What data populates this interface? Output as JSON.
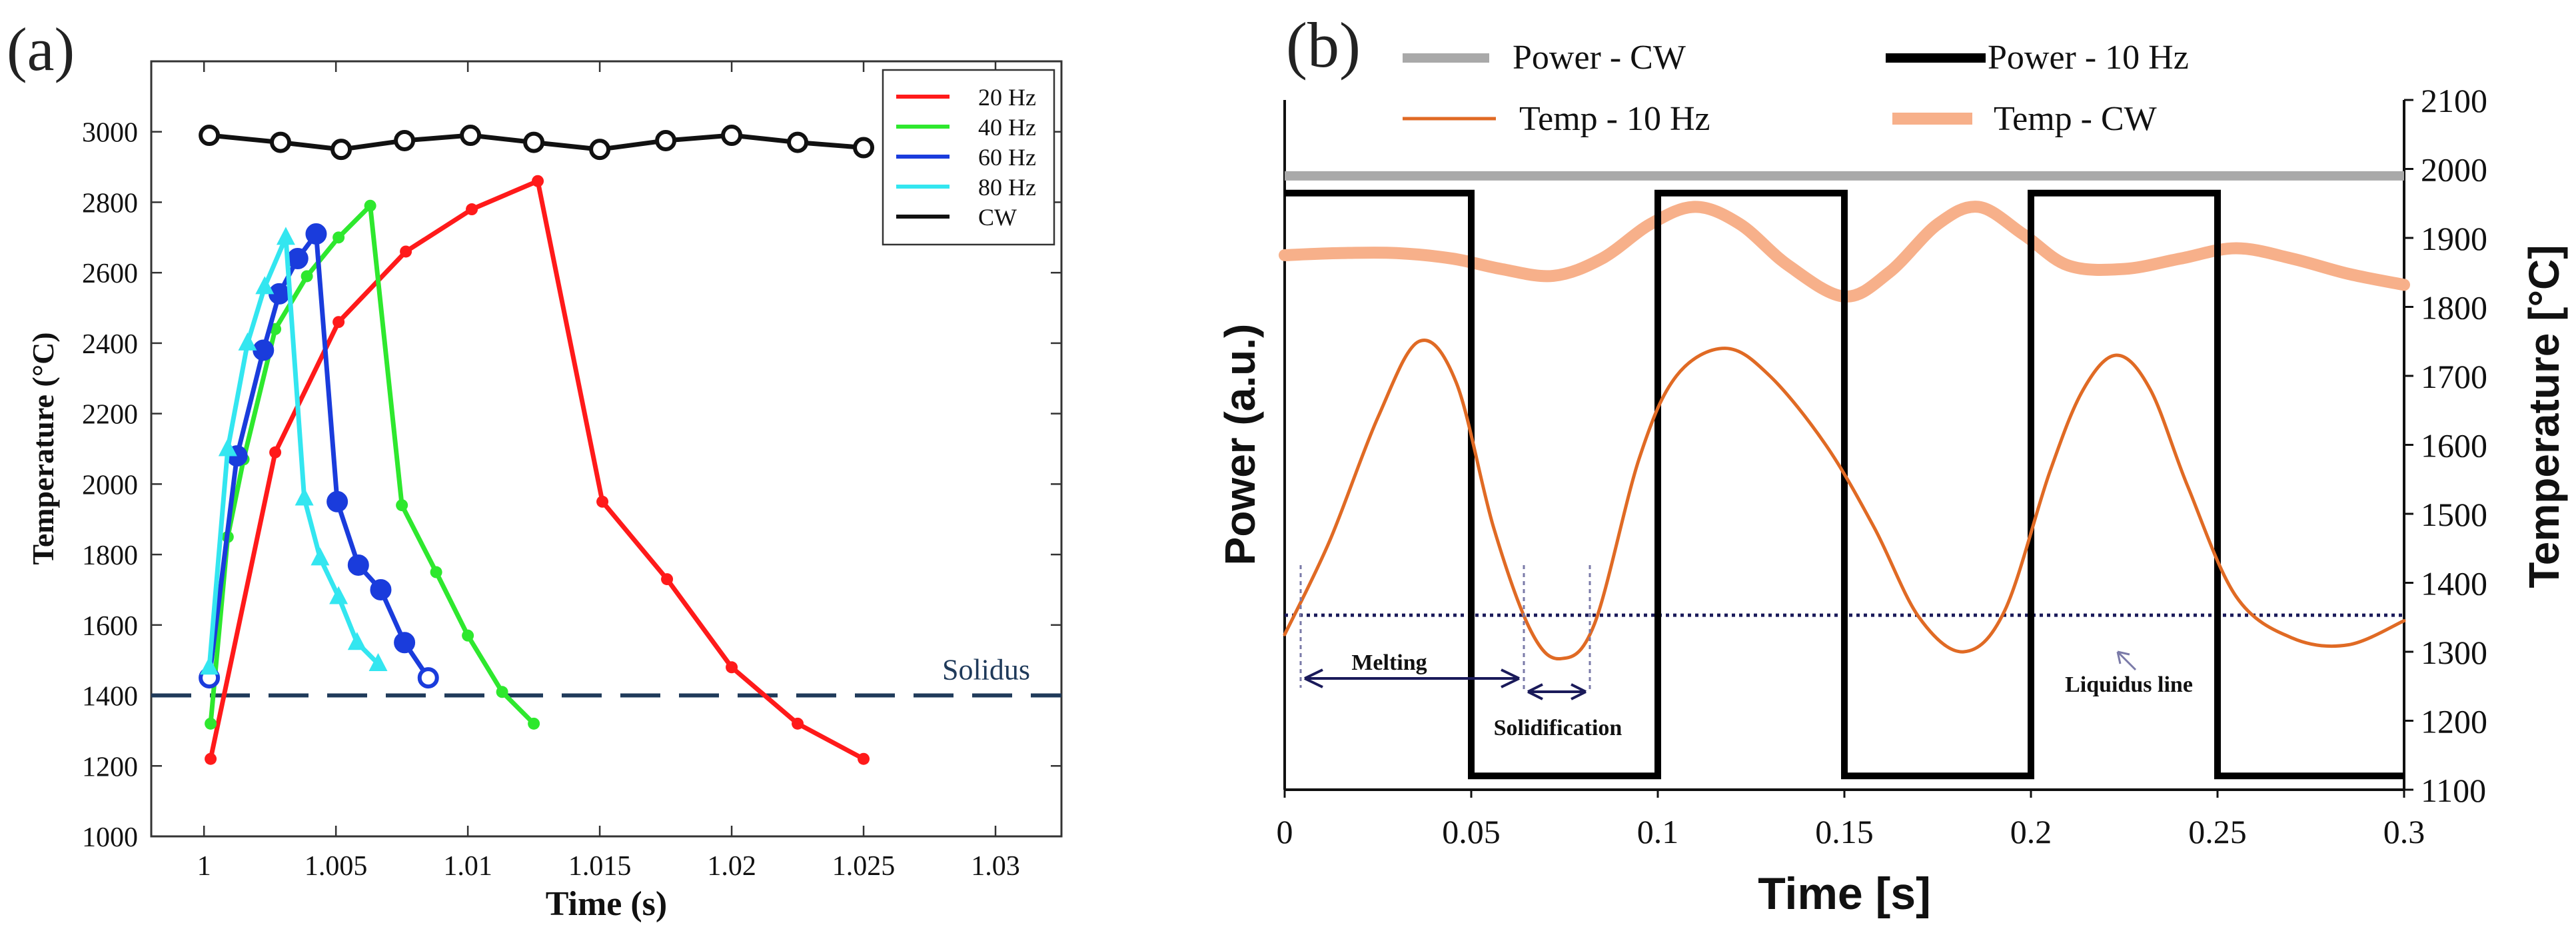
{
  "chart_data": [
    {
      "panel_label": "(a)",
      "type": "line",
      "title": "",
      "xlabel": "Time (s)",
      "ylabel": "Temperature (°C)",
      "xlim": [
        0.998,
        1.0325
      ],
      "ylim": [
        1000,
        3200
      ],
      "xticks": [
        1,
        1.005,
        1.01,
        1.015,
        1.02,
        1.025,
        1.03
      ],
      "xtick_labels": [
        "1",
        "1.005",
        "1.01",
        "1.015",
        "1.02",
        "1.025",
        "1.03"
      ],
      "yticks": [
        1000,
        1200,
        1400,
        1600,
        1800,
        2000,
        2200,
        2400,
        2600,
        2800,
        3000
      ],
      "ytick_labels": [
        "1000",
        "1200",
        "1400",
        "1600",
        "1800",
        "2000",
        "2200",
        "2400",
        "2600",
        "2800",
        "3000"
      ],
      "legend_position": "top-right",
      "solidus": {
        "value": 1400,
        "label": "Solidus",
        "color": "#1f3a5a"
      },
      "series": [
        {
          "name": "20 Hz",
          "color": "#ff1a1a",
          "marker": "dot",
          "x": [
            1.00025,
            1.0027,
            1.0051,
            1.00765,
            1.01015,
            1.01265,
            1.0151,
            1.01755,
            1.02,
            1.0225,
            1.025
          ],
          "y": [
            1220,
            2090,
            2460,
            2660,
            2780,
            2860,
            1950,
            1730,
            1480,
            1320,
            1220
          ]
        },
        {
          "name": "40 Hz",
          "color": "#2ee82e",
          "marker": "dot",
          "x": [
            1.00025,
            1.0009,
            1.0015,
            1.0027,
            1.0039,
            1.0051,
            1.0063,
            1.0075,
            1.0088,
            1.01,
            1.0113,
            1.0125
          ],
          "y": [
            1320,
            1850,
            2070,
            2440,
            2590,
            2700,
            2790,
            1940,
            1750,
            1570,
            1410,
            1320
          ]
        },
        {
          "name": "60 Hz",
          "color": "#1a3cdc",
          "marker": "circle",
          "x": [
            1.0002,
            1.00125,
            1.00225,
            1.00285,
            1.00355,
            1.00425,
            1.00505,
            1.00585,
            1.0067,
            1.0076,
            1.0085
          ],
          "y": [
            1450,
            2080,
            2380,
            2540,
            2640,
            2710,
            1950,
            1770,
            1700,
            1550,
            1450
          ]
        },
        {
          "name": "80 Hz",
          "color": "#33e6f0",
          "marker": "triangle",
          "x": [
            1.0002,
            1.0009,
            1.00165,
            1.0023,
            1.0031,
            1.0038,
            1.0044,
            1.0051,
            1.0058,
            1.0066
          ],
          "y": [
            1480,
            2100,
            2400,
            2560,
            2700,
            1960,
            1790,
            1680,
            1550,
            1490
          ]
        },
        {
          "name": "CW",
          "color": "#111111",
          "marker": "circle",
          "x": [
            1.0002,
            1.0029,
            1.0052,
            1.0076,
            1.0101,
            1.0125,
            1.015,
            1.0175,
            1.02,
            1.0225,
            1.025
          ],
          "y": [
            2990,
            2970,
            2950,
            2975,
            2990,
            2970,
            2950,
            2975,
            2990,
            2970,
            2955
          ]
        }
      ]
    },
    {
      "panel_label": "(b)",
      "type": "line",
      "title": "",
      "xlabel": "Time [s]",
      "ylabel_left": "Power (a.u.)",
      "ylabel_right": "Temperature [°C]",
      "xlim": [
        0,
        0.3
      ],
      "ylim_right": [
        1100,
        2100
      ],
      "xticks": [
        0,
        0.05,
        0.1,
        0.15,
        0.2,
        0.25,
        0.3
      ],
      "xtick_labels": [
        "0",
        "0.05",
        "0.1",
        "0.15",
        "0.2",
        "0.25",
        "0.3"
      ],
      "yticks_right": [
        1100,
        1200,
        1300,
        1400,
        1500,
        1600,
        1700,
        1800,
        1900,
        2000,
        2100
      ],
      "ytick_labels_right": [
        "1100",
        "1200",
        "1300",
        "1400",
        "1500",
        "1600",
        "1700",
        "1800",
        "1900",
        "2000",
        "2100"
      ],
      "legend_position": "top",
      "liquidus": {
        "value": 1353,
        "label": "Liquidus line"
      },
      "annotations": {
        "melting": {
          "label": "Melting",
          "x_start": 0.005,
          "x_end": 0.065
        },
        "solidification": {
          "label": "Solidification",
          "x_start": 0.066,
          "x_end": 0.084
        }
      },
      "series": [
        {
          "name": "Power - CW",
          "color": "#a9a9a9",
          "axis": "right",
          "x": [
            0,
            0.3
          ],
          "y": [
            1990,
            1990
          ]
        },
        {
          "name": "Power - 10 Hz",
          "color": "#000000",
          "axis": "right",
          "x": [
            0,
            0.05,
            0.05,
            0.1,
            0.1,
            0.15,
            0.15,
            0.2,
            0.2,
            0.25,
            0.25,
            0.3
          ],
          "y": [
            1965,
            1965,
            1120,
            1120,
            1965,
            1965,
            1120,
            1120,
            1965,
            1965,
            1120,
            1120
          ]
        },
        {
          "name": "Temp - 10 Hz",
          "color": "#e06a24",
          "axis": "right",
          "x": [
            0,
            0.012,
            0.025,
            0.036,
            0.046,
            0.056,
            0.066,
            0.074,
            0.083,
            0.095,
            0.105,
            0.118,
            0.13,
            0.145,
            0.158,
            0.17,
            0.182,
            0.193,
            0.205,
            0.214,
            0.223,
            0.232,
            0.242,
            0.255,
            0.27,
            0.285,
            0.3
          ],
          "y": [
            1325,
            1460,
            1640,
            1750,
            1690,
            1480,
            1330,
            1290,
            1340,
            1580,
            1700,
            1740,
            1700,
            1600,
            1480,
            1350,
            1300,
            1360,
            1560,
            1680,
            1730,
            1680,
            1540,
            1380,
            1320,
            1310,
            1345
          ]
        },
        {
          "name": "Temp - CW",
          "color": "#f7b08a",
          "axis": "right",
          "x": [
            0,
            0.015,
            0.03,
            0.045,
            0.058,
            0.072,
            0.085,
            0.098,
            0.11,
            0.122,
            0.135,
            0.15,
            0.162,
            0.175,
            0.186,
            0.198,
            0.21,
            0.225,
            0.24,
            0.255,
            0.27,
            0.285,
            0.3
          ],
          "y": [
            1875,
            1878,
            1878,
            1870,
            1855,
            1845,
            1870,
            1920,
            1945,
            1920,
            1860,
            1815,
            1850,
            1920,
            1945,
            1905,
            1860,
            1855,
            1870,
            1885,
            1870,
            1848,
            1832
          ]
        }
      ]
    }
  ]
}
